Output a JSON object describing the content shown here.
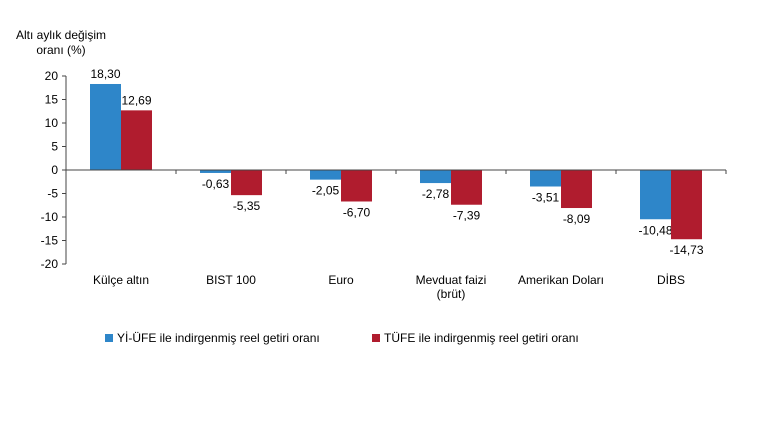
{
  "chart_data": {
    "type": "bar",
    "ylabel_lines": [
      "Altı aylık değişim",
      "oranı (%)"
    ],
    "ylim": [
      -20,
      20
    ],
    "yticks": [
      "20",
      "15",
      "10",
      "5",
      "0",
      "-5",
      "-10",
      "-15",
      "-20"
    ],
    "ytick_values": [
      20,
      15,
      10,
      5,
      0,
      -5,
      -10,
      -15,
      -20
    ],
    "categories": [
      [
        "Külçe altın"
      ],
      [
        "BIST 100"
      ],
      [
        "Euro"
      ],
      [
        "Mevduat faizi",
        "(brüt)"
      ],
      [
        "Amerikan Doları"
      ],
      [
        "DİBS"
      ]
    ],
    "series": [
      {
        "name": "Yİ-ÜFE ile indirgenmiş reel getiri oranı",
        "color": "#2E86C9",
        "values": [
          18.3,
          -0.63,
          -2.05,
          -2.78,
          -3.51,
          -10.48
        ],
        "labels": [
          "18,30",
          "-0,63",
          "-2,05",
          "-2,78",
          "-3,51",
          "-10,48"
        ]
      },
      {
        "name": "TÜFE ile indirgenmiş reel getiri oranı",
        "color": "#B01C2E",
        "values": [
          12.69,
          -5.35,
          -6.7,
          -7.39,
          -8.09,
          -14.73
        ],
        "labels": [
          "12,69",
          "-5,35",
          "-6,70",
          "-7,39",
          "-8,09",
          "-14,73"
        ]
      }
    ],
    "grid": false,
    "legend_position": "bottom"
  }
}
